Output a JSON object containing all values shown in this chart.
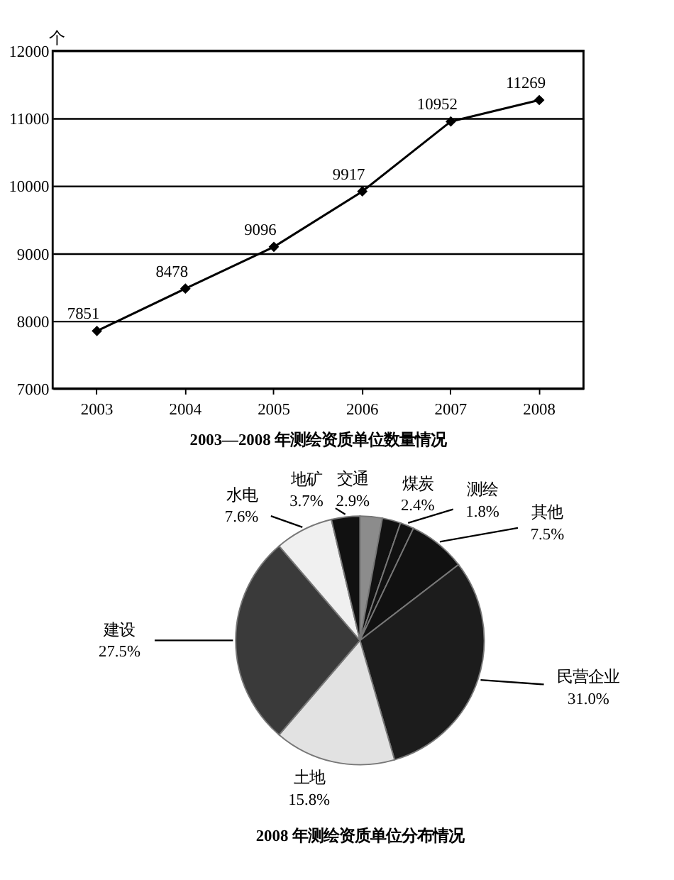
{
  "chart_data": [
    {
      "type": "line",
      "title": "2003—2008 年测绘资质单位数量情况",
      "ylabel": "个",
      "categories": [
        "2003",
        "2004",
        "2005",
        "2006",
        "2007",
        "2008"
      ],
      "series": [
        {
          "color": "#000000",
          "values": [
            7851,
            8478,
            9096,
            9917,
            10952,
            11269
          ]
        }
      ],
      "ylim": [
        7000,
        12000
      ],
      "yticks": [
        7000,
        8000,
        9000,
        10000,
        11000,
        12000
      ],
      "grid": "y",
      "marker": "diamond",
      "line_style": "solid",
      "data_labels": true
    },
    {
      "type": "pie",
      "title": "2008 年测绘资质单位分布情况",
      "categories": [
        "交通",
        "煤炭",
        "测绘",
        "其他",
        "民营企业",
        "土地",
        "建设",
        "水电",
        "地矿"
      ],
      "values": [
        2.9,
        2.4,
        1.8,
        7.5,
        31.0,
        15.8,
        27.5,
        7.6,
        3.7
      ],
      "colors": [
        "#8c8c8c",
        "#111111",
        "#111111",
        "#111111",
        "#1c1c1c",
        "#e2e2e2",
        "#3a3a3a",
        "#f0f0f0",
        "#111111"
      ],
      "value_labels": [
        "2.9%",
        "2.4%",
        "1.8%",
        "7.5%",
        "31.0%",
        "15.8%",
        "27.5%",
        "7.6%",
        "3.7%"
      ]
    }
  ]
}
